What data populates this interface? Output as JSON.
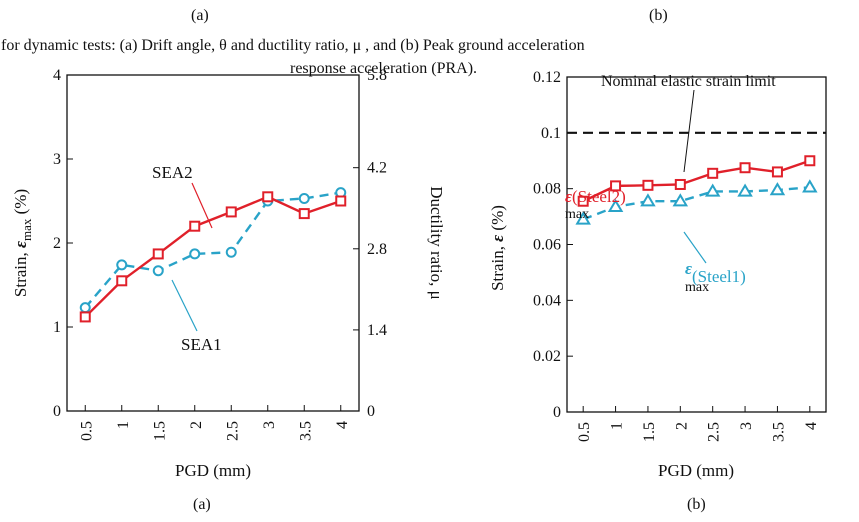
{
  "captions": {
    "top_a": "(a)",
    "top_b": "(b)",
    "line1": "for dynamic tests: (a) Drift angle, θ and ductility ratio, μ , and (b) Peak ground acceleration",
    "line2": "response acceleration (PRA).",
    "bottom_a": "(a)",
    "bottom_b": "(b)"
  },
  "colors": {
    "red": "#e0202a",
    "blue": "#29a3c8",
    "axis": "#111111"
  },
  "chart_data": [
    {
      "type": "line",
      "xlabel": "PGD (mm)",
      "ylabel_prefix": "Strain, ",
      "ylabel_symbol": "ε",
      "ylabel_sub": "max",
      "ylabel_suffix": " (%)",
      "y2label": "Ductility ratio, μ",
      "x_ticks": [
        "0.5",
        "1",
        "1.5",
        "2",
        "2.5",
        "3",
        "3.5",
        "4"
      ],
      "y_ticks": [
        "0",
        "1",
        "2",
        "3",
        "4"
      ],
      "y2_ticks": [
        "0",
        "1.4",
        "2.8",
        "4.2",
        "5.8"
      ],
      "xlim": [
        0.25,
        4.25
      ],
      "ylim": [
        0,
        4
      ],
      "y2lim": [
        0,
        5.8
      ],
      "grid": false,
      "series": [
        {
          "name": "SEA2",
          "color": "red",
          "style": "solid",
          "marker": "square",
          "x": [
            0.5,
            1,
            1.5,
            2,
            2.5,
            3,
            3.5,
            4
          ],
          "values": [
            1.12,
            1.55,
            1.87,
            2.2,
            2.37,
            2.55,
            2.35,
            2.5
          ]
        },
        {
          "name": "SEA1",
          "color": "blue",
          "style": "dashed",
          "marker": "circle",
          "x": [
            0.5,
            1,
            1.5,
            2,
            2.5,
            3,
            3.5,
            4
          ],
          "values": [
            1.23,
            1.74,
            1.67,
            1.87,
            1.89,
            2.5,
            2.53,
            2.6
          ]
        }
      ],
      "annotations": {
        "sea2": "SEA2",
        "sea1": "SEA1"
      }
    },
    {
      "type": "line",
      "xlabel": "PGD (mm)",
      "ylabel_prefix": "Strain, ",
      "ylabel_symbol": "ε",
      "ylabel_suffix": " (%)",
      "x_ticks": [
        "0.5",
        "1",
        "1.5",
        "2",
        "2.5",
        "3",
        "3.5",
        "4"
      ],
      "y_ticks": [
        "0",
        "0.02",
        "0.04",
        "0.06",
        "0.08",
        "0.1",
        "0.12"
      ],
      "xlim": [
        0.25,
        4.25
      ],
      "ylim": [
        0,
        0.12
      ],
      "grid": false,
      "reference_line": {
        "y": 0.1,
        "label": "Nominal elastic strain limit"
      },
      "series": [
        {
          "name": "Steel2",
          "color": "red",
          "style": "solid",
          "marker": "square",
          "x": [
            0.5,
            1,
            1.5,
            2,
            2.5,
            3,
            3.5,
            4
          ],
          "values": [
            0.0755,
            0.081,
            0.0812,
            0.0815,
            0.0855,
            0.0875,
            0.086,
            0.09
          ]
        },
        {
          "name": "Steel1",
          "color": "blue",
          "style": "dashed",
          "marker": "triangle",
          "x": [
            0.5,
            1,
            1.5,
            2,
            2.5,
            3,
            3.5,
            4
          ],
          "values": [
            0.069,
            0.0735,
            0.0755,
            0.0755,
            0.079,
            0.079,
            0.0795,
            0.0805
          ]
        }
      ],
      "annotations": {
        "steel2_symbol": "ε",
        "steel2_sub": "max",
        "steel2_text": "(Steel2)",
        "steel1_symbol": "ε",
        "steel1_sub": "max",
        "steel1_text": "(Steel1)"
      }
    }
  ]
}
